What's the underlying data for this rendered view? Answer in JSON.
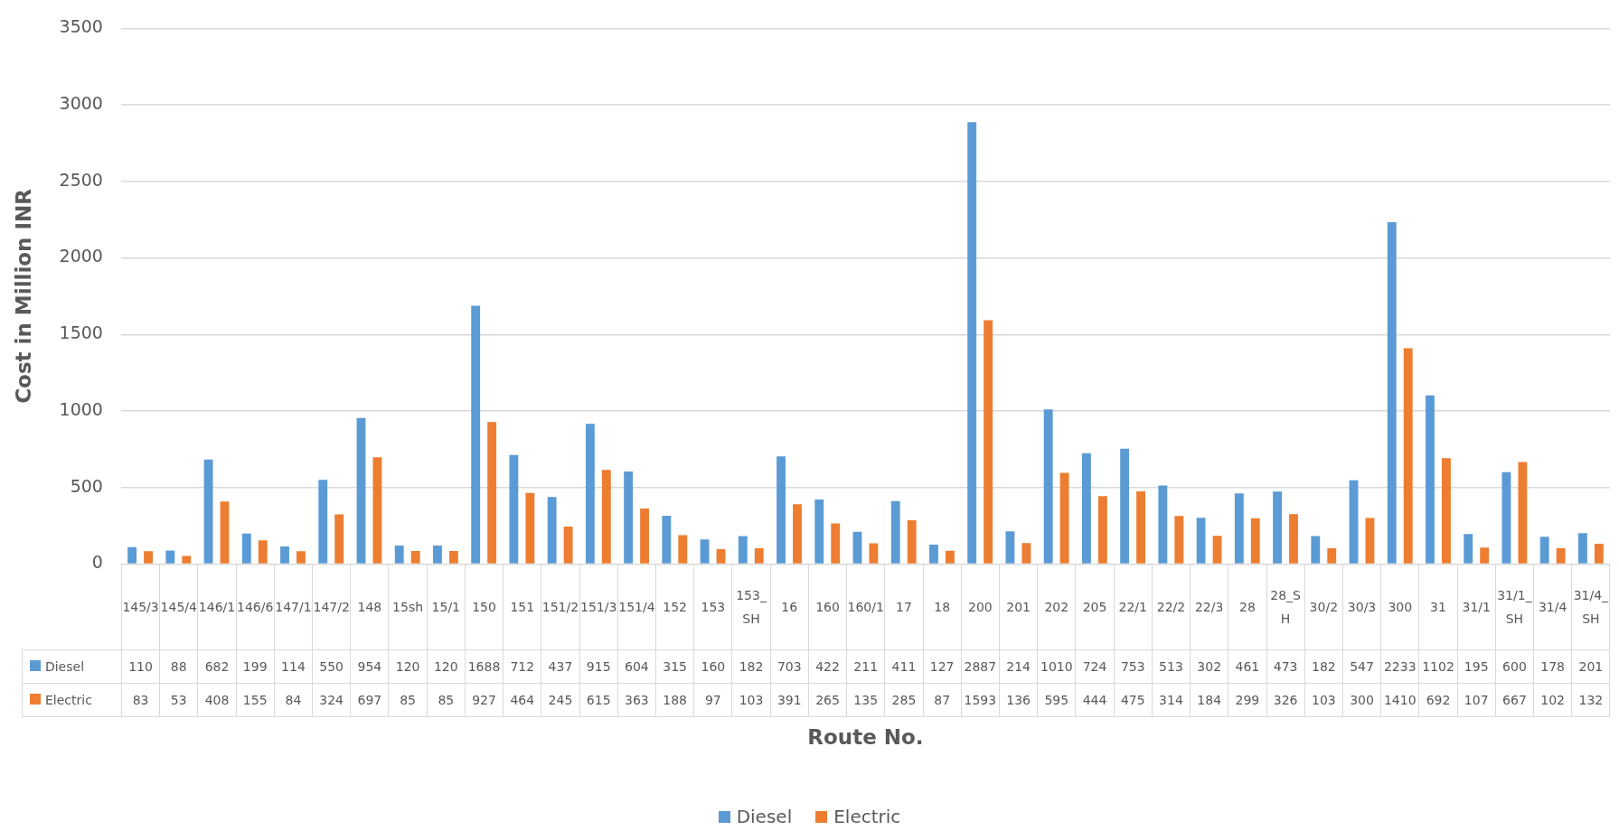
{
  "chart_data": {
    "type": "bar",
    "xlabel": "Route No.",
    "ylabel": "Cost in Million INR",
    "categories": [
      "145/3",
      "145/4",
      "146/1",
      "146/6",
      "147/1",
      "147/2",
      "148",
      "15sh",
      "15/1",
      "150",
      "151",
      "151/2",
      "151/3",
      "151/4",
      "152",
      "153",
      "153_SH",
      "16",
      "160",
      "160/1",
      "17",
      "18",
      "200",
      "201",
      "202",
      "205",
      "22/1",
      "22/2",
      "22/3",
      "28",
      "28_SH",
      "30/2",
      "30/3",
      "300",
      "31",
      "31/1",
      "31/1_SH",
      "31/4",
      "31/4_SH"
    ],
    "series": [
      {
        "name": "Diesel",
        "color": "#5b9bd5",
        "values": [
          110,
          88,
          682,
          199,
          114,
          550,
          954,
          120,
          120,
          1688,
          712,
          437,
          915,
          604,
          315,
          160,
          182,
          703,
          422,
          211,
          411,
          127,
          2887,
          214,
          1010,
          724,
          753,
          513,
          302,
          461,
          473,
          182,
          547,
          2233,
          1102,
          195,
          600,
          178,
          201
        ],
        "value_labels": [
          "110",
          "88",
          "682",
          "199",
          "114",
          "550",
          "954",
          "120",
          "120",
          "1688",
          "712",
          "437",
          "915",
          "604",
          "315",
          "160",
          "182",
          "703",
          "422",
          "211",
          "411",
          "127",
          "2887",
          "214",
          "1010",
          "724",
          "753",
          "513",
          "302",
          "461",
          "473",
          "182",
          "547",
          "2233",
          "1102",
          "195",
          "600",
          "178",
          "201"
        ]
      },
      {
        "name": "Electric",
        "color": "#ed7d31",
        "values": [
          83,
          53,
          408,
          155,
          84,
          324,
          697,
          85,
          85,
          927,
          464,
          245,
          615,
          363,
          188,
          97,
          103,
          391,
          265,
          135,
          285,
          87,
          1593,
          136,
          595,
          444,
          475,
          314,
          184,
          299,
          326,
          103,
          300,
          1410,
          692,
          107,
          667,
          102,
          132
        ],
        "value_labels": [
          "83",
          "53",
          "408",
          "155",
          "84",
          "324",
          "697",
          "85",
          "85",
          "927",
          "464",
          "245",
          "615",
          "363",
          "188",
          "97",
          "103",
          "391",
          "265",
          "135",
          "285",
          "87",
          "1593",
          "136",
          "595",
          "444",
          "475",
          "314",
          "184",
          "299",
          "326",
          "103",
          "300",
          "1410",
          "692",
          "107",
          "667",
          "102",
          "132"
        ]
      }
    ],
    "ylim": [
      0,
      3500
    ],
    "yticks": [
      0,
      500,
      1000,
      1500,
      2000,
      2500,
      3000,
      3500
    ],
    "grid": "y",
    "legend": "bottom"
  }
}
